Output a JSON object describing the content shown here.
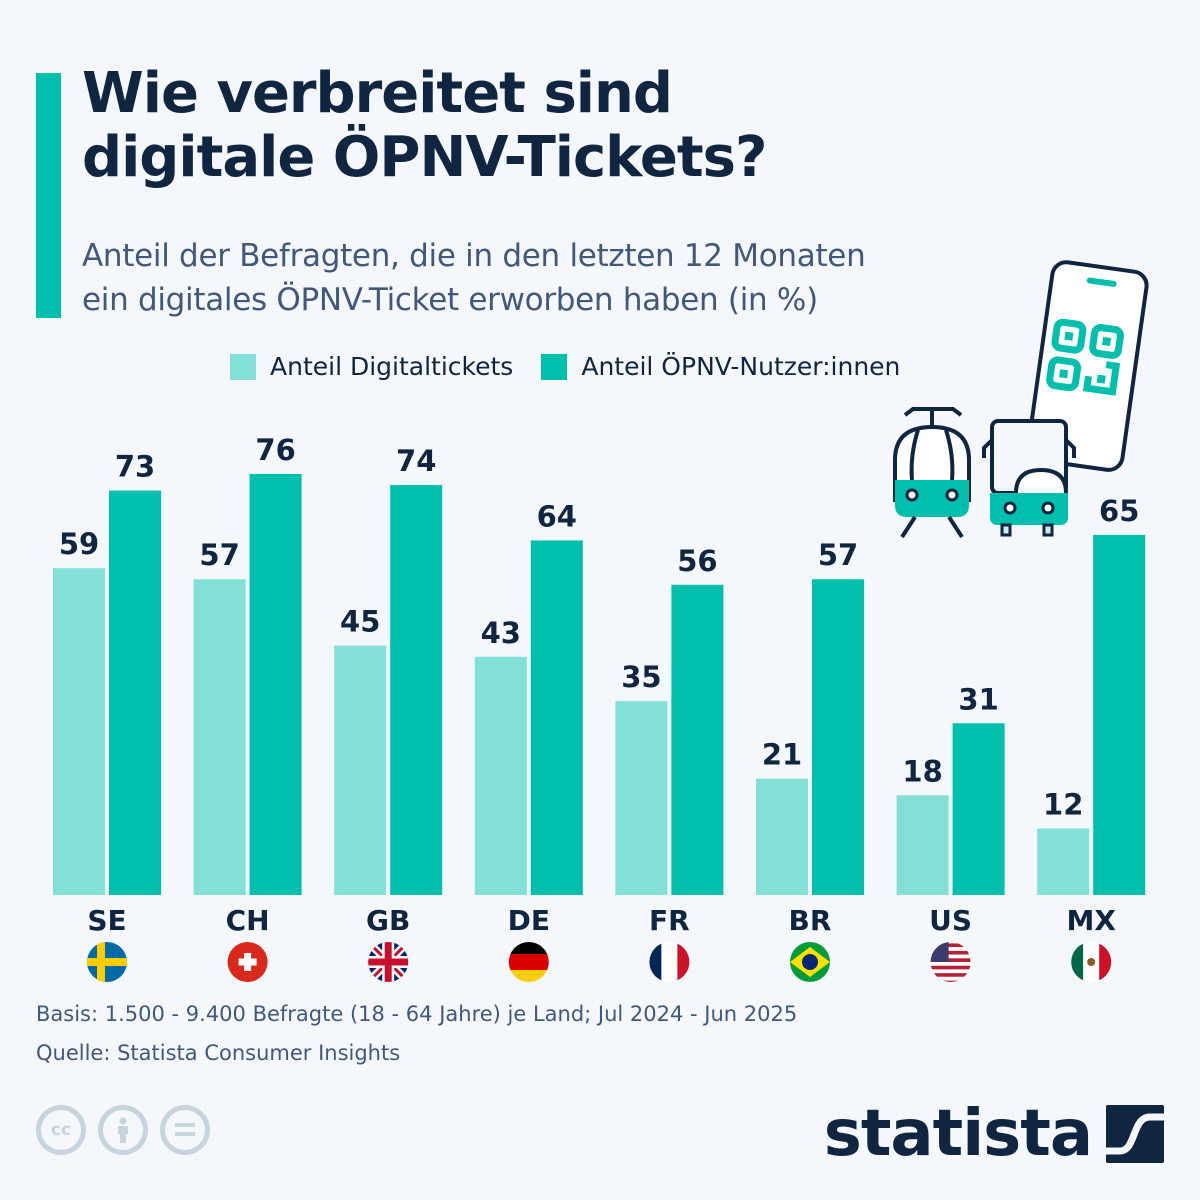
{
  "header": {
    "title": "Wie verbreitet sind\ndigitale ÖPNV-Tickets?",
    "subtitle": "Anteil der Befragten, die in den letzten 12 Monaten\nein digitales ÖPNV-Ticket erworben haben (in %)"
  },
  "legend": [
    {
      "label": "Anteil Digitaltickets",
      "color": "#82e0d6"
    },
    {
      "label": "Anteil ÖPNV-Nutzer:innen",
      "color": "#00bfad"
    }
  ],
  "chart_data": {
    "type": "bar",
    "title": "Wie verbreitet sind digitale ÖPNV-Tickets?",
    "subtitle": "Anteil der Befragten, die in den letzten 12 Monaten ein digitales ÖPNV-Ticket erworben haben (in %)",
    "categories": [
      "SE",
      "CH",
      "GB",
      "DE",
      "FR",
      "BR",
      "US",
      "MX"
    ],
    "flags": [
      "sweden-flag",
      "switzerland-flag",
      "uk-flag",
      "germany-flag",
      "france-flag",
      "brazil-flag",
      "usa-flag",
      "mexico-flag"
    ],
    "series": [
      {
        "name": "Anteil Digitaltickets",
        "color": "#82e0d6",
        "values": [
          59,
          57,
          45,
          43,
          35,
          21,
          18,
          12
        ]
      },
      {
        "name": "Anteil ÖPNV-Nutzer:innen",
        "color": "#00bfad",
        "values": [
          73,
          76,
          74,
          64,
          56,
          57,
          31,
          65
        ]
      }
    ],
    "xlabel": "",
    "ylabel": "",
    "ylim": [
      0,
      80
    ],
    "grid": false,
    "legend_position": "top-center",
    "data_labels": true
  },
  "footer": {
    "basis": "Basis: 1.500 - 9.400 Befragte (18 - 64 Jahre) je Land; Jul 2024 - Jun 2025",
    "source": "Quelle: Statista Consumer Insights",
    "cc_label": "cc",
    "logo": "statista"
  }
}
